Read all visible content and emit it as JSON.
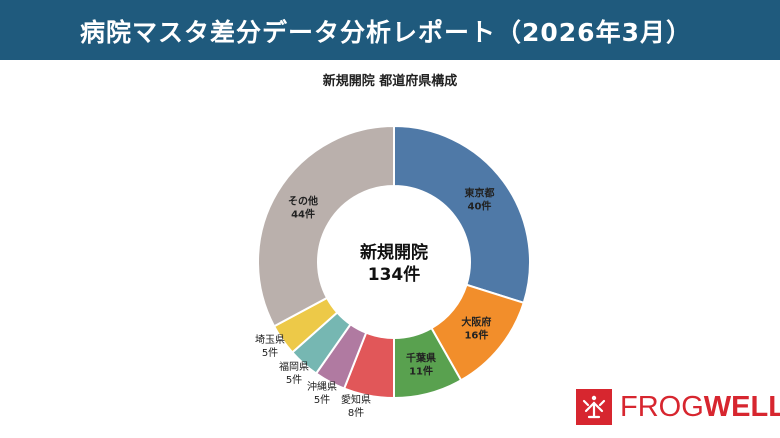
{
  "header": {
    "title": "病院マスタ差分データ分析レポート（2026年3月）"
  },
  "chart_data": {
    "type": "pie",
    "title": "新規開院 都道府県構成",
    "center_label": "新規開院",
    "center_value": "134件",
    "unit": "件",
    "slices": [
      {
        "name": "東京都",
        "value": 40,
        "color": "#4f79a7",
        "label_inside": true
      },
      {
        "name": "大阪府",
        "value": 16,
        "color": "#f28e2b",
        "label_inside": true
      },
      {
        "name": "千葉県",
        "value": 11,
        "color": "#59a14f",
        "label_inside": true
      },
      {
        "name": "愛知県",
        "value": 8,
        "color": "#e15759",
        "label_inside": false
      },
      {
        "name": "沖縄県",
        "value": 5,
        "color": "#b07aa1",
        "label_inside": false
      },
      {
        "name": "福岡県",
        "value": 5,
        "color": "#76b7b2",
        "label_inside": false
      },
      {
        "name": "埼玉県",
        "value": 5,
        "color": "#edc948",
        "label_inside": false
      },
      {
        "name": "その他",
        "value": 44,
        "color": "#bab0ac",
        "label_inside": true
      }
    ]
  },
  "logo": {
    "text_left": "FROG",
    "text_right": "WELL",
    "color": "#d7262f"
  }
}
